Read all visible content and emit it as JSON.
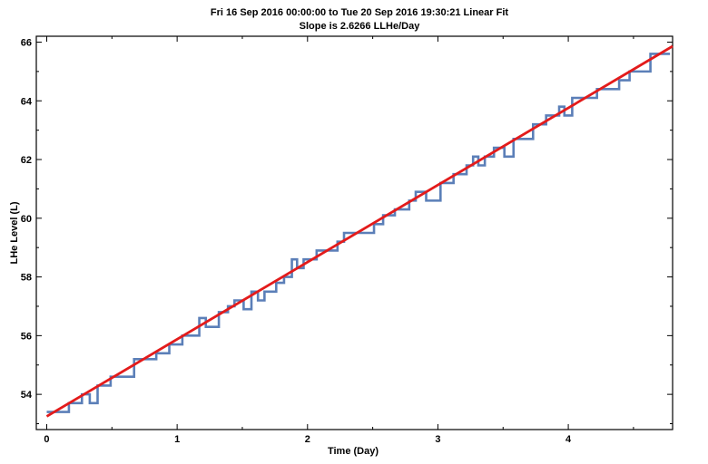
{
  "chart_data": {
    "type": "line",
    "title": "Fri 16 Sep 2016 00:00:00 to Tue 20 Sep 2016 19:30:21 Linear Fit",
    "subtitle": "Slope is 2.6266 LLHe/Day",
    "xlabel": "Time (Day)",
    "ylabel": "LHe Level (L)",
    "xlim": [
      -0.08,
      4.8
    ],
    "ylim": [
      52.8,
      66.2
    ],
    "xticks": [
      0,
      1,
      2,
      3,
      4
    ],
    "yticks": [
      54,
      56,
      58,
      60,
      62,
      64,
      66
    ],
    "xtick_labels": [
      "0",
      "1",
      "2",
      "3",
      "4"
    ],
    "ytick_labels": [
      "54",
      "56",
      "58",
      "60",
      "62",
      "64",
      "66"
    ],
    "grid": false,
    "legend": "none",
    "series": [
      {
        "style": "step",
        "color": "#5b7fb8",
        "x": [
          0.0,
          0.17,
          0.27,
          0.33,
          0.39,
          0.49,
          0.67,
          0.84,
          0.94,
          1.04,
          1.17,
          1.22,
          1.32,
          1.39,
          1.44,
          1.51,
          1.57,
          1.62,
          1.67,
          1.76,
          1.82,
          1.88,
          1.92,
          1.97,
          2.07,
          2.13,
          2.23,
          2.28,
          2.39,
          2.51,
          2.58,
          2.67,
          2.78,
          2.83,
          2.91,
          3.02,
          3.12,
          3.22,
          3.27,
          3.31,
          3.36,
          3.43,
          3.51,
          3.58,
          3.63,
          3.73,
          3.83,
          3.93,
          3.97,
          4.03,
          4.11,
          4.22,
          4.29,
          4.39,
          4.47,
          4.63,
          4.78
        ],
        "y": [
          53.4,
          53.7,
          54.0,
          53.7,
          54.3,
          54.6,
          55.2,
          55.4,
          55.7,
          56.0,
          56.6,
          56.3,
          56.8,
          57.0,
          57.2,
          56.9,
          57.5,
          57.2,
          57.5,
          57.8,
          58.0,
          58.6,
          58.3,
          58.6,
          58.9,
          58.9,
          59.2,
          59.5,
          59.5,
          59.8,
          60.1,
          60.3,
          60.6,
          60.9,
          60.6,
          61.2,
          61.5,
          61.8,
          62.1,
          61.8,
          62.1,
          62.4,
          62.1,
          62.7,
          62.7,
          63.2,
          63.5,
          63.8,
          63.5,
          64.1,
          64.1,
          64.4,
          64.4,
          64.7,
          65.0,
          65.6,
          65.6
        ]
      },
      {
        "style": "line",
        "color": "#e31b1b",
        "x": [
          0.0,
          4.8
        ],
        "y": [
          53.25,
          65.86
        ]
      }
    ]
  }
}
